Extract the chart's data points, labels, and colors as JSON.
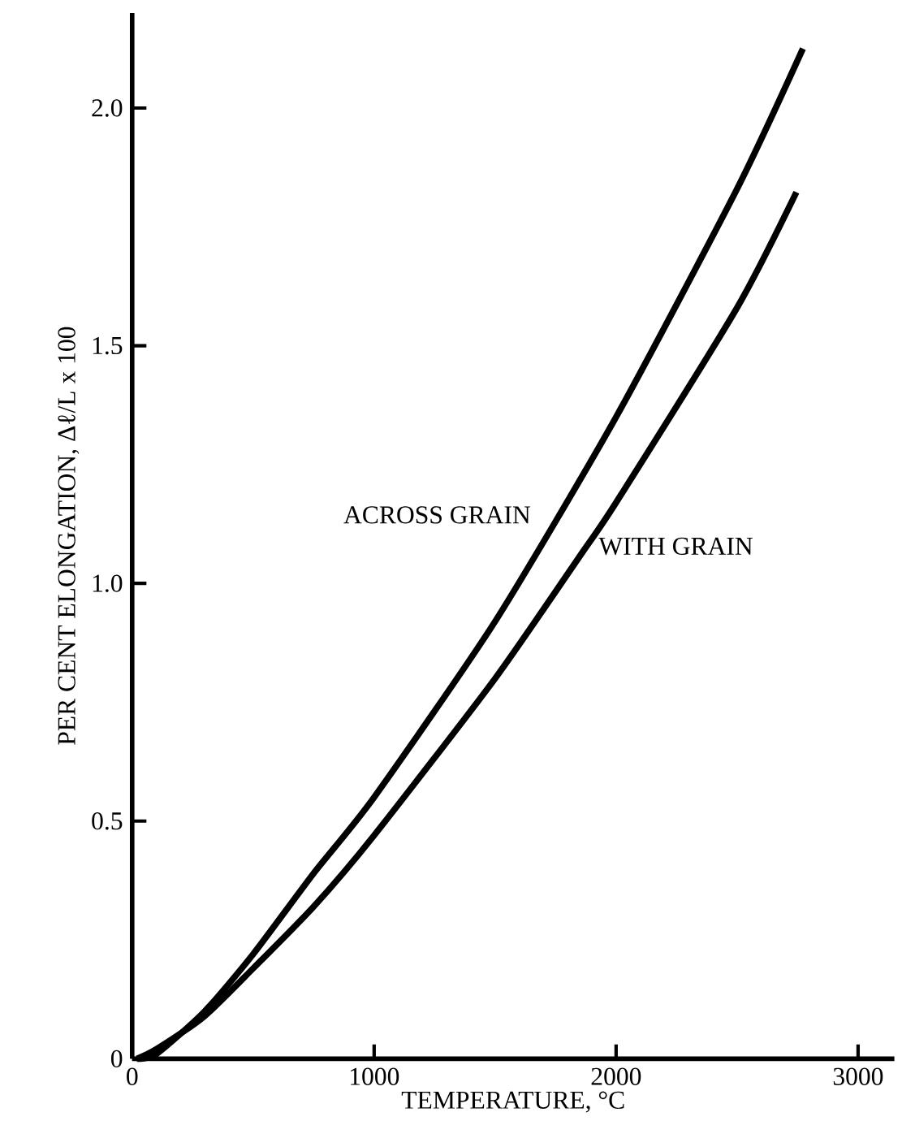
{
  "chart_data": {
    "type": "line",
    "xlabel": "TEMPERATURE, °C",
    "ylabel": "PER CENT ELONGATION, Δℓ/L x 100",
    "xlim": [
      0,
      3150
    ],
    "ylim": [
      0,
      2.2
    ],
    "xticks": [
      0,
      1000,
      2000,
      3000
    ],
    "yticks": [
      {
        "value": 0,
        "label": "0"
      },
      {
        "value": 0.5,
        "label": "0.5"
      },
      {
        "value": 1,
        "label": "1.0"
      },
      {
        "value": 1.5,
        "label": "1.5"
      },
      {
        "value": 2,
        "label": "2.0"
      }
    ],
    "grid": false,
    "legend": false,
    "line_style": "solid",
    "marker": "none",
    "series": [
      {
        "color": "#000000",
        "x": [
          20,
          100,
          300,
          500,
          750,
          1000,
          1500,
          2000,
          2500,
          2772
        ],
        "values": [
          0,
          0.01,
          0.1,
          0.22,
          0.39,
          0.55,
          0.92,
          1.35,
          1.83,
          2.125
        ]
      },
      {
        "color": "#000000",
        "x": [
          20,
          100,
          300,
          500,
          750,
          1000,
          1500,
          1867,
          2000,
          2500,
          2745
        ],
        "values": [
          0,
          0.02,
          0.09,
          0.19,
          0.32,
          0.47,
          0.8,
          1.07,
          1.17,
          1.58,
          1.823
        ]
      }
    ],
    "annotations": [
      "ACROSS GRAIN",
      "WITH GRAIN"
    ]
  }
}
